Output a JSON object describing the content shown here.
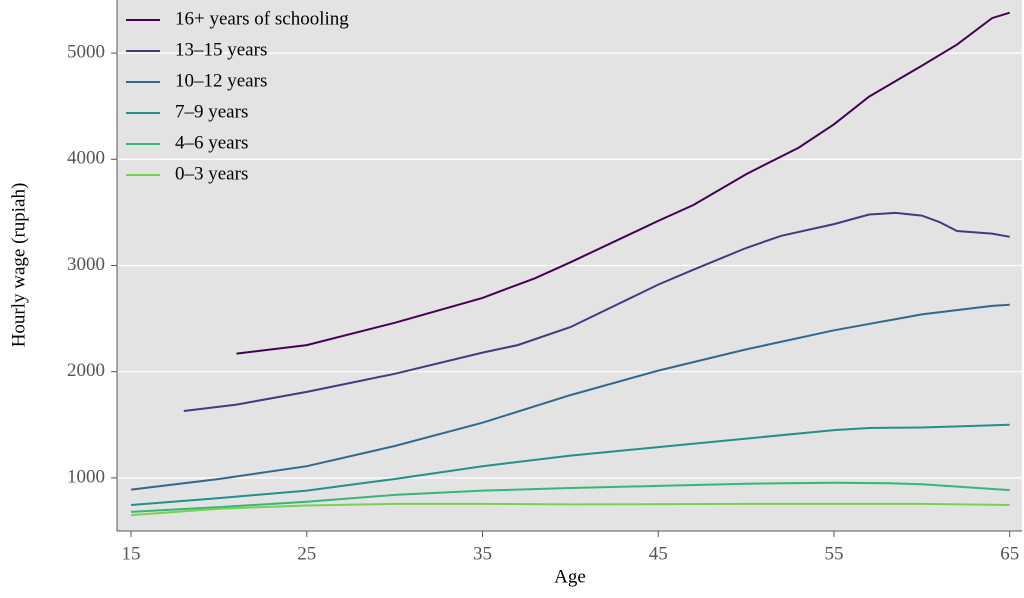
{
  "chart_data": {
    "type": "line",
    "xlabel": "Age",
    "ylabel": "Hourly wage (rupiah)",
    "xlim": [
      14.2,
      65.7
    ],
    "ylim": [
      500,
      5500
    ],
    "xticks": [
      15,
      25,
      35,
      45,
      55,
      65
    ],
    "yticks": [
      1000,
      2000,
      3000,
      4000,
      5000
    ],
    "grid": true,
    "legend": "upper left",
    "series": [
      {
        "name": "16+ years of schooling",
        "color": "#440154",
        "x": [
          21,
          25,
          30,
          35,
          38,
          40,
          45,
          47,
          50,
          53,
          55,
          57,
          60,
          62,
          64,
          65
        ],
        "values": [
          2170,
          2250,
          2460,
          2695,
          2880,
          3030,
          3420,
          3570,
          3860,
          4110,
          4330,
          4590,
          4880,
          5080,
          5330,
          5380
        ]
      },
      {
        "name": "13–15 years",
        "color": "#443983",
        "x": [
          18,
          21,
          25,
          30,
          35,
          37,
          40,
          45,
          47,
          50,
          52,
          55,
          57,
          58.5,
          60,
          61,
          62,
          64,
          65
        ],
        "values": [
          1630,
          1690,
          1810,
          1980,
          2180,
          2250,
          2420,
          2820,
          2960,
          3165,
          3280,
          3390,
          3480,
          3495,
          3470,
          3410,
          3325,
          3300,
          3270
        ]
      },
      {
        "name": "10–12 years",
        "color": "#31688e",
        "x": [
          15,
          20,
          25,
          30,
          35,
          40,
          45,
          50,
          55,
          60,
          64,
          65
        ],
        "values": [
          890,
          990,
          1110,
          1300,
          1520,
          1780,
          2010,
          2210,
          2390,
          2540,
          2620,
          2630
        ]
      },
      {
        "name": "7–9 years",
        "color": "#21918c",
        "x": [
          15,
          20,
          25,
          30,
          35,
          40,
          45,
          50,
          55,
          57,
          60,
          65
        ],
        "values": [
          745,
          810,
          880,
          990,
          1110,
          1210,
          1290,
          1370,
          1450,
          1470,
          1475,
          1500
        ]
      },
      {
        "name": "4–6 years",
        "color": "#35b779",
        "x": [
          15,
          20,
          25,
          30,
          35,
          40,
          45,
          50,
          55,
          58,
          60,
          65
        ],
        "values": [
          680,
          725,
          775,
          840,
          880,
          905,
          925,
          945,
          955,
          950,
          940,
          885
        ]
      },
      {
        "name": "0–3 years",
        "color": "#7ad151",
        "x": [
          15,
          20,
          25,
          30,
          35,
          40,
          50,
          55,
          60,
          65
        ],
        "values": [
          650,
          710,
          740,
          755,
          755,
          750,
          755,
          755,
          755,
          745
        ]
      }
    ]
  }
}
